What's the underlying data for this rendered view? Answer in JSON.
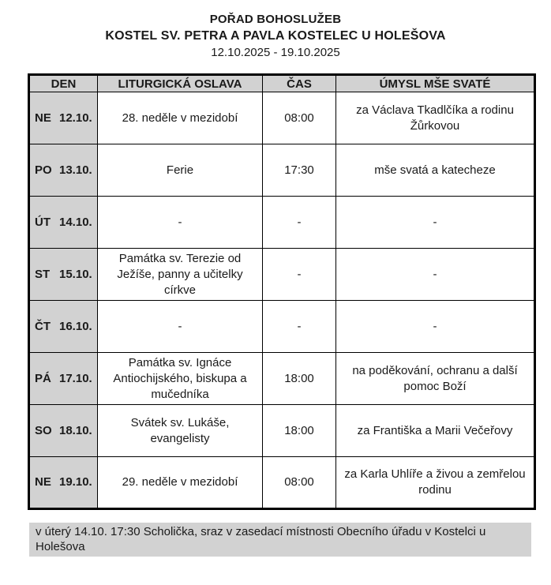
{
  "header": {
    "title_line1": "POŘAD BOHOSLUŽEB",
    "title_line2": "KOSTEL SV. PETRA A PAVLA KOSTELEC U HOLEŠOVA",
    "date_range": "12.10.2025 - 19.10.2025"
  },
  "colors": {
    "cell_gray": "#d2d2d2",
    "border_color": "#000000",
    "text_color": "#1a1a1a"
  },
  "table": {
    "columns": [
      "DEN",
      "LITURGICKÁ OSLAVA",
      "ČAS",
      "ÚMYSL MŠE SVATÉ"
    ],
    "rows": [
      {
        "day": "NE",
        "date": "12.10.",
        "celebration": "28. neděle v mezidobí",
        "time": "08:00",
        "intention": "za Václava Tkadlčíka a rodinu Žůrkovou"
      },
      {
        "day": "PO",
        "date": "13.10.",
        "celebration": "Ferie",
        "time": "17:30",
        "intention": "mše svatá a katecheze"
      },
      {
        "day": "ÚT",
        "date": "14.10.",
        "celebration": "-",
        "time": "-",
        "intention": "-"
      },
      {
        "day": "ST",
        "date": "15.10.",
        "celebration": "Památka sv. Terezie od Ježíše, panny a učitelky církve",
        "time": "-",
        "intention": "-"
      },
      {
        "day": "ČT",
        "date": "16.10.",
        "celebration": "-",
        "time": "-",
        "intention": "-"
      },
      {
        "day": "PÁ",
        "date": "17.10.",
        "celebration": "Památka sv. Ignáce Antiochijského, biskupa a mučedníka",
        "time": "18:00",
        "intention": "na poděkování, ochranu a další pomoc Boží"
      },
      {
        "day": "SO",
        "date": "18.10.",
        "celebration": "Svátek sv. Lukáše, evangelisty",
        "time": "18:00",
        "intention": "za Františka a Marii Večeřovy"
      },
      {
        "day": "NE",
        "date": "19.10.",
        "celebration": "29. neděle v mezidobí",
        "time": "08:00",
        "intention": "za Karla Uhlíře a živou a zemřelou rodinu"
      }
    ]
  },
  "footer": {
    "note": "v úterý 14.10. 17:30 Scholička, sraz v zasedací místnosti Obecního úřadu v Kostelci u Holešova"
  }
}
